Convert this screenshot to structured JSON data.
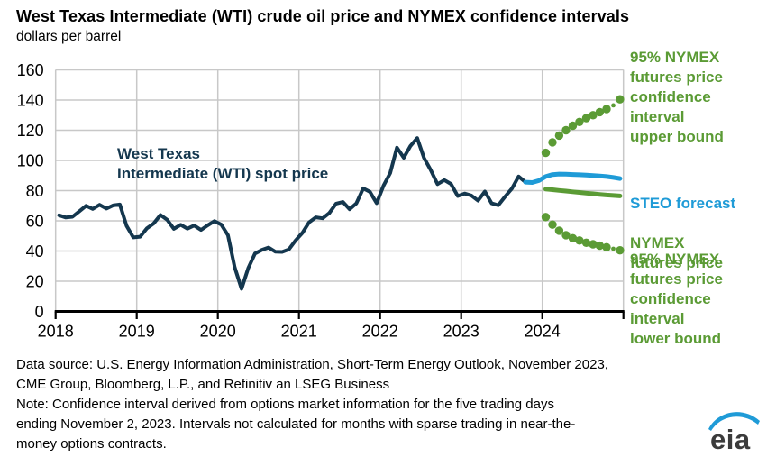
{
  "header": {
    "title": "West Texas Intermediate (WTI) crude oil price and NYMEX confidence intervals",
    "subtitle": "dollars per barrel"
  },
  "chart_data": {
    "type": "line",
    "title": "West Texas Intermediate (WTI) crude oil price and NYMEX confidence intervals",
    "ylabel": "dollars per barrel",
    "xlabel": "",
    "ylim": [
      0,
      160
    ],
    "xlim": [
      2018,
      2025
    ],
    "y_ticks": [
      0,
      20,
      40,
      60,
      80,
      100,
      120,
      140,
      160
    ],
    "x_ticks": [
      2018,
      2019,
      2020,
      2021,
      2022,
      2023,
      2024
    ],
    "grid": true,
    "legend_position": "right-annotations",
    "colors": {
      "spot": "#14374e",
      "forecast_blue": "#1f9bd7",
      "futures_green": "#5b9b35",
      "grid": "#c8c8c8",
      "axis": "#000000"
    },
    "series": [
      {
        "name": "West Texas Intermediate (WTI) spot price",
        "style": "line",
        "color_key": "spot",
        "width": 4,
        "start_year": 2018,
        "start_month": 1,
        "values": [
          63.7,
          62.2,
          62.7,
          66.3,
          70.0,
          67.9,
          70.6,
          68.1,
          70.2,
          70.8,
          56.7,
          49.0,
          49.5,
          55.0,
          58.2,
          63.9,
          60.8,
          54.7,
          57.4,
          54.8,
          56.9,
          54.0,
          57.0,
          59.8,
          57.5,
          50.5,
          29.2,
          15.0,
          28.6,
          38.3,
          40.7,
          42.3,
          39.6,
          39.4,
          41.0,
          47.0,
          52.0,
          59.0,
          62.3,
          61.7,
          65.2,
          71.4,
          72.5,
          67.7,
          71.6,
          81.5,
          79.2,
          71.7,
          83.2,
          91.6,
          108.5,
          101.8,
          109.6,
          114.8,
          101.6,
          93.7,
          84.3,
          87.0,
          84.4,
          76.4,
          78.1,
          76.8,
          73.4,
          79.4,
          71.6,
          70.3,
          76.1,
          81.4,
          89.4,
          85.6
        ]
      },
      {
        "name": "STEO forecast",
        "style": "line",
        "color_key": "forecast_blue",
        "width": 5,
        "start_year": 2023,
        "start_month": 10,
        "values": [
          85.6,
          85.4,
          86.6,
          89.3,
          90.6,
          91.0,
          90.9,
          90.7,
          90.5,
          90.3,
          90.0,
          89.7,
          89.3,
          88.7,
          88.0
        ]
      },
      {
        "name": "NYMEX futures price",
        "style": "line",
        "color_key": "futures_green",
        "width": 5,
        "start_year": 2024,
        "start_month": 1,
        "values": [
          81.0,
          80.6,
          80.1,
          79.7,
          79.2,
          78.8,
          78.3,
          77.9,
          77.5,
          77.1,
          76.8,
          76.5
        ]
      },
      {
        "name": "95% NYMEX futures price confidence interval upper bound",
        "style": "dots",
        "color_key": "futures_green",
        "dot_radius": 4.7,
        "small_dot_index": 10,
        "small_dot_radius": 2.4,
        "start_year": 2024,
        "start_month": 1,
        "values": [
          105.0,
          112.0,
          116.5,
          120.0,
          123.0,
          125.5,
          128.0,
          130.0,
          132.0,
          134.0,
          136.5,
          140.5
        ]
      },
      {
        "name": "95% NYMEX futures price confidence interval lower bound",
        "style": "dots",
        "color_key": "futures_green",
        "dot_radius": 4.7,
        "small_dot_index": 10,
        "small_dot_radius": 2.4,
        "start_year": 2024,
        "start_month": 1,
        "values": [
          62.5,
          57.5,
          53.5,
          50.5,
          48.5,
          47.0,
          45.5,
          44.5,
          43.5,
          42.5,
          41.5,
          40.5
        ]
      }
    ]
  },
  "annotations": {
    "spot_label": "West Texas\nIntermediate (WTI) spot price",
    "upper_bound_label": "95% NYMEX\nfutures price\nconfidence\ninterval\nupper bound",
    "steo_label": "STEO forecast",
    "nymex_label": "NYMEX\nfutures price",
    "lower_bound_label": "95% NYMEX\nfutures price\nconfidence\ninterval\nlower bound"
  },
  "footer": {
    "lines": [
      "Data source: U.S. Energy Information Administration, Short-Term Energy Outlook, November 2023,",
      "CME Group, Bloomberg, L.P., and Refinitiv an LSEG Business",
      "Note: Confidence interval derived from options market information for the five trading days",
      "ending November 2, 2023. Intervals not calculated for months with sparse trading in near-the-",
      "money options contracts."
    ]
  },
  "logo": {
    "text": "eia"
  }
}
